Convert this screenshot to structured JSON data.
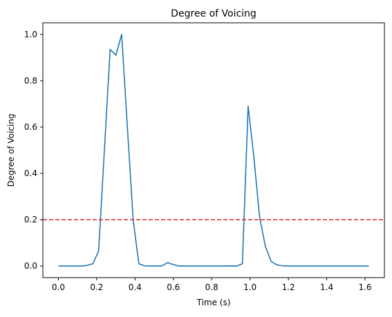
{
  "chart_data": {
    "type": "line",
    "title": "Degree of Voicing",
    "xlabel": "Time (s)",
    "ylabel": "Degree of Voicing",
    "xlim": [
      -0.081,
      1.701
    ],
    "ylim": [
      -0.05,
      1.05
    ],
    "xticks": [
      0.0,
      0.2,
      0.4,
      0.6,
      0.8,
      1.0,
      1.2,
      1.4,
      1.6
    ],
    "xtick_labels": [
      "0.0",
      "0.2",
      "0.4",
      "0.6",
      "0.8",
      "1.0",
      "1.2",
      "1.4",
      "1.6"
    ],
    "yticks": [
      0.0,
      0.2,
      0.4,
      0.6,
      0.8,
      1.0
    ],
    "ytick_labels": [
      "0.0",
      "0.2",
      "0.4",
      "0.6",
      "0.8",
      "1.0"
    ],
    "grid": false,
    "legend": "none",
    "series": [
      {
        "color": "#1f77b4",
        "x": [
          0.0,
          0.03,
          0.06,
          0.09,
          0.12,
          0.15,
          0.18,
          0.21,
          0.24,
          0.27,
          0.3,
          0.33,
          0.36,
          0.39,
          0.42,
          0.45,
          0.48,
          0.51,
          0.54,
          0.57,
          0.6,
          0.63,
          0.66,
          0.69,
          0.72,
          0.75,
          0.78,
          0.81,
          0.84,
          0.87,
          0.9,
          0.93,
          0.96,
          0.99,
          1.02,
          1.05,
          1.08,
          1.11,
          1.14,
          1.17,
          1.2,
          1.23,
          1.26,
          1.29,
          1.32,
          1.35,
          1.38,
          1.41,
          1.44,
          1.47,
          1.5,
          1.53,
          1.56,
          1.59,
          1.62
        ],
        "y": [
          0.0,
          0.0,
          0.0,
          0.0,
          0.0,
          0.003,
          0.01,
          0.065,
          0.5,
          0.935,
          0.91,
          1.0,
          0.6,
          0.2,
          0.01,
          0.001,
          0.0,
          0.0,
          0.001,
          0.015,
          0.006,
          0.0,
          0.0,
          0.0,
          0.0,
          0.0,
          0.0,
          0.0,
          0.0,
          0.0,
          0.0005,
          0.0,
          0.01,
          0.69,
          0.47,
          0.21,
          0.085,
          0.02,
          0.005,
          0.001,
          0.0,
          0.0,
          0.0,
          0.0,
          0.0,
          0.0,
          0.0,
          0.0,
          0.0,
          0.0,
          0.0,
          0.0,
          0.0,
          0.0,
          0.0
        ]
      }
    ],
    "hlines": [
      {
        "y": 0.2,
        "color": "#d62728",
        "style": "dashed"
      }
    ]
  }
}
